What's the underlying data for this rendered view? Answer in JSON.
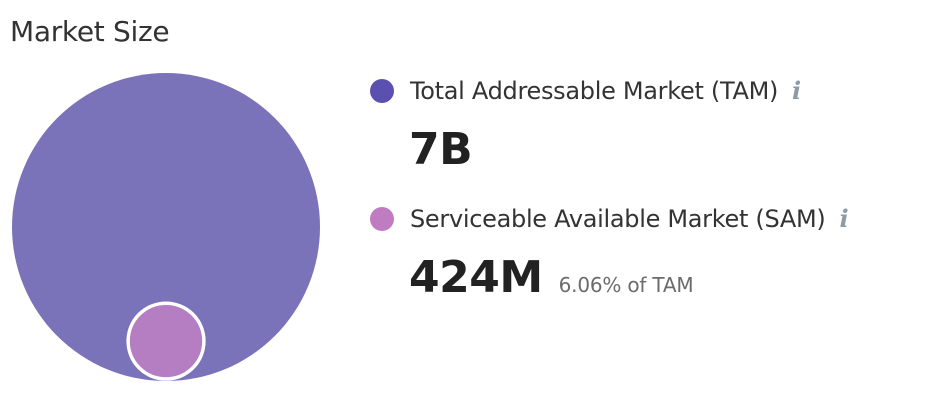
{
  "title": "Market Size",
  "legend": {
    "tam": {
      "label": "Total Addressable Market (TAM)",
      "value": "7B",
      "color": "#5b4fb0",
      "icon": "info-icon"
    },
    "sam": {
      "label": "Serviceable Available Market (SAM)",
      "value": "424M",
      "percent_text": "6.06% of TAM",
      "color": "#c07cc0",
      "icon": "info-icon"
    }
  },
  "info_glyph": "i",
  "chart_data": {
    "type": "nested-circle",
    "series": [
      {
        "name": "Total Addressable Market (TAM)",
        "value": 7000000000,
        "color": "#7b73ba"
      },
      {
        "name": "Serviceable Available Market (SAM)",
        "value": 424000000,
        "color": "#b57ec2"
      }
    ]
  }
}
